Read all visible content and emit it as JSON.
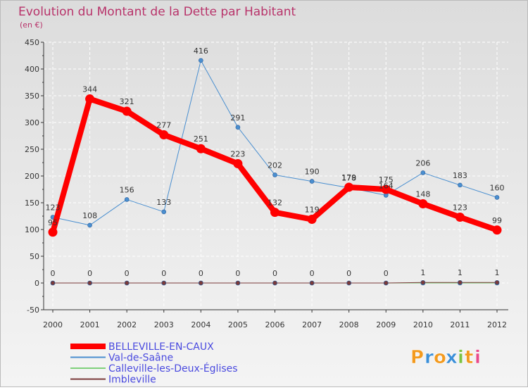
{
  "chart_data": {
    "type": "line",
    "title": "Evolution du Montant de la Dette par Habitant",
    "subtitle": "(en €)",
    "ylim": [
      -50,
      450
    ],
    "yticks": [
      -50,
      0,
      50,
      100,
      150,
      200,
      250,
      300,
      350,
      400,
      450
    ],
    "x": [
      "2000",
      "2001",
      "2002",
      "2003",
      "2004",
      "2005",
      "2006",
      "2007",
      "2008",
      "2009",
      "2010",
      "2011",
      "2012"
    ],
    "grid": true,
    "legend_position": "bottom-left",
    "series": [
      {
        "name": "Val-de-Saâne",
        "color": "#4a8fd0",
        "width": 1,
        "marker": true,
        "values": [
          123,
          108,
          156,
          133,
          416,
          291,
          202,
          190,
          178,
          164,
          206,
          183,
          160
        ],
        "labels": [
          "123",
          "108",
          "156",
          "133",
          "416",
          "291",
          "202",
          "190",
          "178",
          "164",
          "206",
          "183",
          "160"
        ]
      },
      {
        "name": "Calleville-les-Deux-Églises",
        "color": "#7ed07a",
        "width": 1,
        "marker": true,
        "values": [
          0,
          0,
          0,
          0,
          0,
          0,
          0,
          0,
          0,
          0,
          0,
          0,
          0
        ],
        "labels": []
      },
      {
        "name": "Imbleville",
        "color": "#7a3a3a",
        "width": 1,
        "marker": true,
        "values": [
          0,
          0,
          0,
          0,
          0,
          0,
          0,
          0,
          0,
          0,
          1,
          1,
          1
        ],
        "labels": [
          "0",
          "0",
          "0",
          "0",
          "0",
          "0",
          "0",
          "0",
          "0",
          "0",
          "1",
          "1",
          "1"
        ]
      },
      {
        "name": "BELLEVILLE-EN-CAUX",
        "color": "#ff0000",
        "width": 8,
        "marker": true,
        "values": [
          95,
          344,
          321,
          277,
          251,
          223,
          132,
          119,
          179,
          175,
          148,
          123,
          99
        ],
        "labels": [
          "95",
          "344",
          "321",
          "277",
          "251",
          "223",
          "132",
          "119",
          "179",
          "175",
          "148",
          "123",
          "99"
        ]
      }
    ],
    "legend": [
      {
        "name": "BELLEVILLE-EN-CAUX",
        "color": "#ff0000",
        "width": 8
      },
      {
        "name": "Val-de-Saâne",
        "color": "#4a8fd0",
        "width": 2
      },
      {
        "name": "Calleville-les-Deux-Églises",
        "color": "#7ed07a",
        "width": 2
      },
      {
        "name": "Imbleville",
        "color": "#7a3a3a",
        "width": 2
      }
    ]
  },
  "logo": {
    "text": "Proxiti"
  }
}
